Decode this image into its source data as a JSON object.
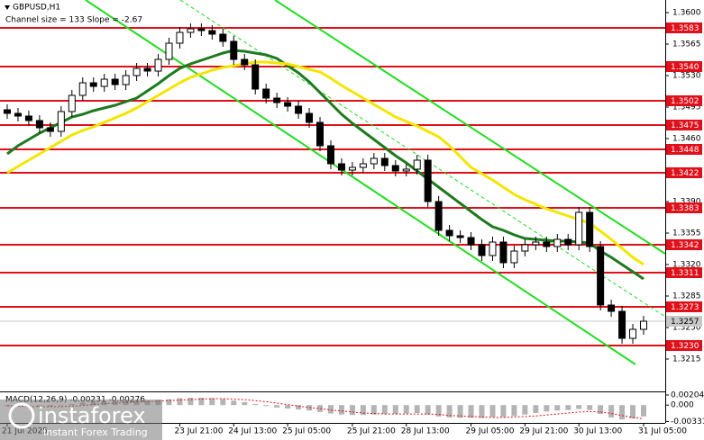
{
  "chart_data": {
    "type": "candlestick",
    "title": "GBPUSD,H1",
    "subtitle": "Channel size = 133 Slope = -2.67",
    "categories": [
      "21 Jul 2025",
      null,
      null,
      null,
      null,
      null,
      null,
      null,
      null,
      null,
      null,
      null,
      null,
      null,
      null,
      null,
      "23 Jul 21:00",
      null,
      null,
      null,
      null,
      "24 Jul 13:00",
      null,
      null,
      null,
      null,
      "25 Jul 05:00",
      null,
      null,
      null,
      null,
      null,
      "25 Jul 21:00",
      null,
      null,
      null,
      null,
      "28 Jul 13:00",
      null,
      null,
      null,
      null,
      null,
      "29 Jul 05:00",
      null,
      null,
      null,
      null,
      "29 Jul 21:00",
      null,
      null,
      null,
      null,
      "30 Jul 13:00",
      null,
      null,
      null,
      null,
      null,
      "31 Jul 05:00"
    ],
    "open": [
      1.3492,
      1.3488,
      1.3485,
      1.348,
      1.3472,
      1.3468,
      1.349,
      1.3508,
      1.3522,
      1.3518,
      1.3526,
      1.352,
      1.353,
      1.3538,
      1.3535,
      1.3548,
      1.3566,
      1.3578,
      1.3582,
      1.358,
      1.3576,
      1.3568,
      1.3548,
      1.3542,
      1.3515,
      1.3505,
      1.35,
      1.3496,
      1.3488,
      1.3478,
      1.3452,
      1.3432,
      1.3425,
      1.3428,
      1.3432,
      1.3438,
      1.343,
      1.3424,
      1.3426,
      1.3436,
      1.339,
      1.3358,
      1.3352,
      1.335,
      1.3342,
      1.333,
      1.3345,
      1.3322,
      1.3335,
      1.3342,
      1.3345,
      1.334,
      1.3348,
      1.3342,
      1.3378,
      1.334,
      1.3275,
      1.3268,
      1.3238,
      1.3248
    ],
    "high": [
      1.3498,
      1.3494,
      1.3491,
      1.3486,
      1.3478,
      1.3496,
      1.3514,
      1.3528,
      1.3528,
      1.3532,
      1.3532,
      1.3536,
      1.3544,
      1.3544,
      1.3554,
      1.3572,
      1.3584,
      1.3588,
      1.3588,
      1.3586,
      1.3582,
      1.3574,
      1.3554,
      1.3548,
      1.3521,
      1.3511,
      1.3506,
      1.3502,
      1.3494,
      1.3484,
      1.3458,
      1.3438,
      1.3434,
      1.3438,
      1.3444,
      1.3444,
      1.3436,
      1.3432,
      1.3442,
      1.3442,
      1.3396,
      1.3364,
      1.3358,
      1.3356,
      1.3348,
      1.3351,
      1.3351,
      1.3341,
      1.3348,
      1.3351,
      1.3351,
      1.3354,
      1.3354,
      1.3384,
      1.3384,
      1.3346,
      1.3281,
      1.3274,
      1.3254,
      1.3263
    ],
    "low": [
      1.3482,
      1.3479,
      1.3474,
      1.3466,
      1.3462,
      1.3462,
      1.3484,
      1.3502,
      1.3512,
      1.3512,
      1.3514,
      1.3514,
      1.3524,
      1.3529,
      1.3529,
      1.3542,
      1.356,
      1.3572,
      1.3574,
      1.357,
      1.3562,
      1.3542,
      1.3536,
      1.3509,
      1.3499,
      1.3494,
      1.349,
      1.3482,
      1.3472,
      1.3446,
      1.3426,
      1.3419,
      1.3419,
      1.3422,
      1.3426,
      1.3424,
      1.3418,
      1.3418,
      1.342,
      1.3384,
      1.3352,
      1.3346,
      1.3344,
      1.3336,
      1.3324,
      1.3324,
      1.3316,
      1.3316,
      1.3329,
      1.3336,
      1.3334,
      1.3334,
      1.3336,
      1.3336,
      1.3334,
      1.3269,
      1.3262,
      1.3232,
      1.3232,
      1.3242
    ],
    "close": [
      1.3488,
      1.3485,
      1.348,
      1.3472,
      1.3468,
      1.349,
      1.3508,
      1.3522,
      1.3518,
      1.3526,
      1.352,
      1.353,
      1.3538,
      1.3535,
      1.3548,
      1.3566,
      1.3578,
      1.3582,
      1.358,
      1.3576,
      1.3568,
      1.3548,
      1.3542,
      1.3515,
      1.3505,
      1.35,
      1.3496,
      1.3488,
      1.3478,
      1.3452,
      1.3432,
      1.3425,
      1.3428,
      1.3432,
      1.3438,
      1.343,
      1.3424,
      1.3426,
      1.3436,
      1.339,
      1.3358,
      1.3352,
      1.335,
      1.3342,
      1.333,
      1.3345,
      1.3322,
      1.3335,
      1.3342,
      1.3345,
      1.334,
      1.3348,
      1.3342,
      1.3378,
      1.334,
      1.3275,
      1.3268,
      1.3238,
      1.3248,
      1.3257
    ],
    "bull_color": "#ffffff",
    "bear_color": "#000000",
    "candle_outline": "#000000",
    "series": [
      {
        "color": "#1e7a1e",
        "values": [
          1.3443,
          1.3452,
          1.3459,
          1.3466,
          1.3472,
          1.3478,
          1.3484,
          1.3487,
          1.3491,
          1.3494,
          1.3497,
          1.3501,
          1.3505,
          1.3513,
          1.3521,
          1.353,
          1.3538,
          1.3543,
          1.3547,
          1.3551,
          1.3555,
          1.3558,
          1.3557,
          1.3555,
          1.3553,
          1.3549,
          1.3541,
          1.3533,
          1.3523,
          1.3511,
          1.3499,
          1.3487,
          1.3477,
          1.3468,
          1.3459,
          1.345,
          1.3441,
          1.3433,
          1.3424,
          1.3415,
          1.3406,
          1.3397,
          1.3388,
          1.3379,
          1.337,
          1.3362,
          1.3358,
          1.3353,
          1.3349,
          1.3348,
          1.3347,
          1.3346,
          1.3346,
          1.3345,
          1.3344,
          1.3335,
          1.3328,
          1.332,
          1.3312,
          1.3304
        ]
      },
      {
        "color": "#f2e600",
        "values": [
          1.3422,
          1.3429,
          1.3436,
          1.3443,
          1.345,
          1.3457,
          1.3464,
          1.3469,
          1.3473,
          1.3478,
          1.3483,
          1.3488,
          1.3494,
          1.3501,
          1.3508,
          1.3515,
          1.3522,
          1.3528,
          1.3532,
          1.3536,
          1.3539,
          1.3541,
          1.3543,
          1.3545,
          1.3545,
          1.3544,
          1.3543,
          1.354,
          1.3537,
          1.3534,
          1.3527,
          1.3519,
          1.3512,
          1.3505,
          1.3498,
          1.3491,
          1.3484,
          1.3479,
          1.3474,
          1.3468,
          1.3462,
          1.3452,
          1.344,
          1.3428,
          1.3421,
          1.3414,
          1.3406,
          1.3398,
          1.3392,
          1.3387,
          1.3382,
          1.3378,
          1.3374,
          1.337,
          1.3366,
          1.3357,
          1.3348,
          1.3338,
          1.3328,
          1.332
        ]
      }
    ],
    "ylim": [
      1.318,
      1.3614
    ],
    "yticks": [
      {
        "value": 1.36,
        "label": "1.3600"
      },
      1.3565,
      {
        "value": 1.353,
        "label": "1.3530"
      },
      1.3495,
      {
        "value": 1.346,
        "label": "1.3460"
      },
      {
        "value": 1.339,
        "label": "1.3390"
      },
      1.3355,
      {
        "value": 1.332,
        "label": "1.3320"
      },
      1.3285,
      {
        "value": 1.325,
        "label": "1.3250"
      },
      1.3215
    ],
    "levels": [
      1.3583,
      {
        "value": 1.354,
        "label": "1.3540"
      },
      1.3502,
      1.3475,
      1.3448,
      1.3422,
      1.3383,
      1.3342,
      1.3311,
      1.3273,
      {
        "value": 1.323,
        "label": "1.3230"
      }
    ],
    "level_color": "#e0101a",
    "current_price": 1.3257,
    "current_price_color": "#c8c8c8",
    "macd": {
      "title": "MACD(12,26,9) -0.00231 -0.00276",
      "color": "#b4b4b4",
      "signal_color": "#e0101a",
      "values": [
        -0.0002,
        -0.0003,
        -0.0004,
        -0.0004,
        -0.0003,
        -0.0001,
        0.0002,
        0.0005,
        0.0006,
        0.0007,
        0.0007,
        0.0008,
        0.0009,
        0.0009,
        0.001,
        0.0012,
        0.0014,
        0.0015,
        0.0015,
        0.0014,
        0.0012,
        0.0009,
        0.0006,
        0.0002,
        -0.0002,
        -0.0005,
        -0.0007,
        -0.0009,
        -0.0011,
        -0.0014,
        -0.0017,
        -0.0019,
        -0.002,
        -0.002,
        -0.0019,
        -0.0018,
        -0.0018,
        -0.0017,
        -0.0016,
        -0.0019,
        -0.0023,
        -0.0025,
        -0.0026,
        -0.0026,
        -0.0026,
        -0.0024,
        -0.0024,
        -0.0022,
        -0.0019,
        -0.0016,
        -0.0013,
        -0.0011,
        -0.001,
        -0.0008,
        -0.001,
        -0.0018,
        -0.0025,
        -0.0029,
        -0.0027,
        -0.0023
      ],
      "signal": [
        -0.0001,
        -0.0002,
        -0.0003,
        -0.0003,
        -0.0003,
        -0.0003,
        -0.0002,
        -0.0001,
        0.0001,
        0.0003,
        0.0004,
        0.0005,
        0.0006,
        0.0007,
        0.0008,
        0.0009,
        0.001,
        0.0011,
        0.0012,
        0.0013,
        0.0013,
        0.0012,
        0.0011,
        0.0009,
        0.0007,
        0.0004,
        0.0001,
        -0.0002,
        -0.0005,
        -0.0007,
        -0.001,
        -0.0012,
        -0.0014,
        -0.0016,
        -0.0017,
        -0.0018,
        -0.0018,
        -0.0018,
        -0.0018,
        -0.0018,
        -0.0019,
        -0.0021,
        -0.0022,
        -0.0023,
        -0.0024,
        -0.0025,
        -0.0025,
        -0.0024,
        -0.0023,
        -0.0022,
        -0.002,
        -0.0018,
        -0.0016,
        -0.0014,
        -0.0013,
        -0.0014,
        -0.0017,
        -0.0021,
        -0.0025,
        -0.00276
      ],
      "ylim": [
        -0.0036,
        0.0024
      ],
      "yticks": [
        0.00204,
        {
          "value": 0,
          "label": "0.000"
        },
        -0.00331
      ]
    },
    "watermark": {
      "brand": "instaforex",
      "tagline": "Instant Forex Trading"
    }
  }
}
